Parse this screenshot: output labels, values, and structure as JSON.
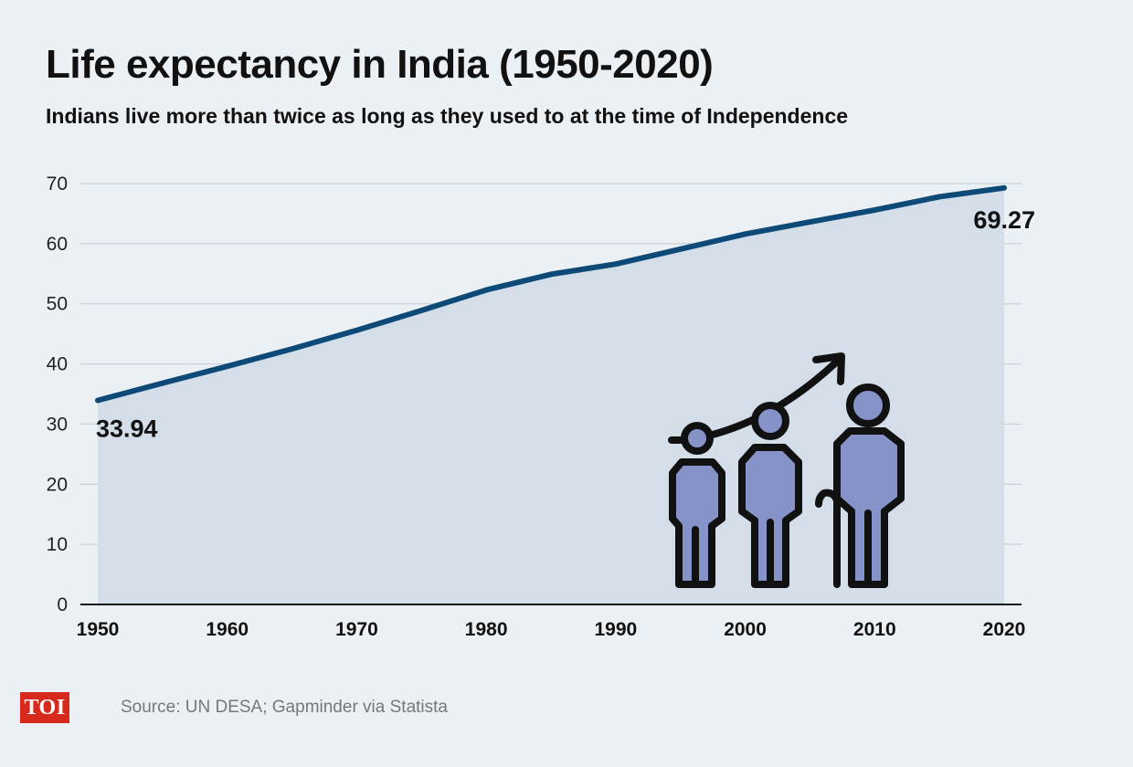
{
  "title": "Life expectancy in India (1950-2020)",
  "subtitle": "Indians live more than twice as long as they used to at the time of Independence",
  "source": "Source: UN DESA; Gapminder via Statista",
  "logo": "TOI",
  "colors": {
    "line": "#0e4a78",
    "area": "#d4dee8",
    "background": "#ebf0f5",
    "grid": "#c7d0da",
    "figure": "#8593c8",
    "logo": "#d7291c"
  },
  "illustration": {
    "icon": "aging-people-arrow-icon"
  },
  "chart_data": {
    "type": "area",
    "title": "Life expectancy in India (1950-2020)",
    "xlabel": "",
    "ylabel": "",
    "xlim": [
      1950,
      2020
    ],
    "ylim": [
      0,
      70
    ],
    "grid": true,
    "x_ticks": [
      "1950",
      "1960",
      "1970",
      "1980",
      "1990",
      "2000",
      "2010",
      "2020"
    ],
    "y_ticks": [
      "0",
      "10",
      "20",
      "30",
      "40",
      "50",
      "60",
      "70"
    ],
    "x": [
      1950,
      1955,
      1960,
      1965,
      1970,
      1975,
      1980,
      1985,
      1990,
      1995,
      2000,
      2005,
      2010,
      2015,
      2020
    ],
    "series": [
      {
        "values": [
          33.94,
          36.8,
          39.6,
          42.5,
          45.6,
          48.9,
          52.3,
          54.9,
          56.6,
          59.1,
          61.6,
          63.6,
          65.6,
          67.8,
          69.27
        ]
      }
    ],
    "annotations": [
      {
        "x": 1950,
        "y": 33.94,
        "text": "33.94"
      },
      {
        "x": 2020,
        "y": 69.27,
        "text": "69.27"
      }
    ]
  }
}
